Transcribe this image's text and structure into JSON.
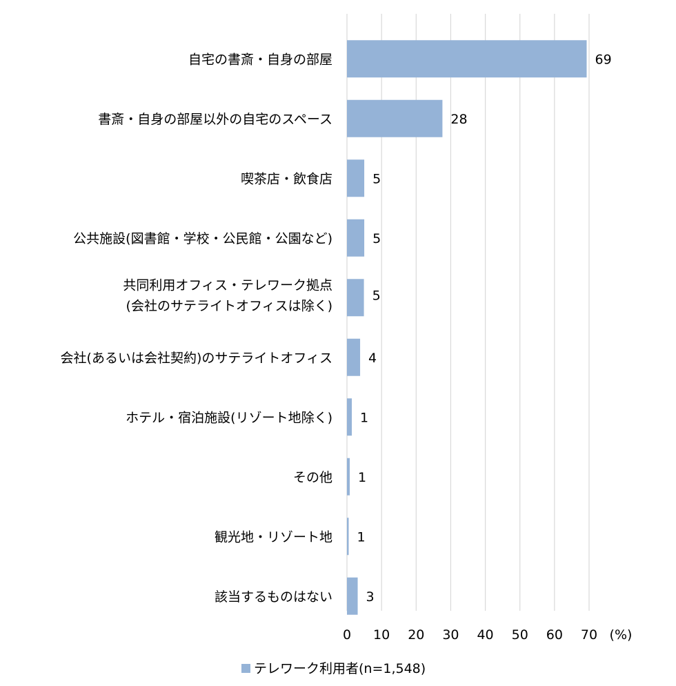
{
  "chart_data": {
    "type": "bar",
    "orientation": "horizontal",
    "categories": [
      [
        "自宅の書斎・自身の部屋"
      ],
      [
        "書斎・自身の部屋以外の自宅のスペース"
      ],
      [
        "喫茶店・飲食店"
      ],
      [
        "公共施設(図書館・学校・公民館・公園など)"
      ],
      [
        "共同利用オフィス・テレワーク拠点",
        "(会社のサテライトオフィスは除く)"
      ],
      [
        "会社(あるいは会社契約)のサテライトオフィス"
      ],
      [
        "ホテル・宿泊施設(リゾート地除く)"
      ],
      [
        "その他"
      ],
      [
        "観光地・リゾート地"
      ],
      [
        "該当するものはない"
      ]
    ],
    "series": [
      {
        "name": "テレワーク利用者(n=1,548)",
        "values": [
          69.3,
          27.6,
          5.0,
          5.0,
          4.9,
          3.8,
          1.4,
          0.8,
          0.5,
          3.1
        ],
        "labels": [
          "69",
          "28",
          "5",
          "5",
          "5",
          "4",
          "1",
          "1",
          "1",
          "3"
        ],
        "color": "#95b3d7"
      }
    ],
    "xlim": [
      0,
      70
    ],
    "xticks": [
      0,
      10,
      20,
      30,
      40,
      50,
      60,
      70
    ],
    "unit": "(%)",
    "grid": true,
    "gridColor": "#d9d9d9",
    "legend": "bottom"
  }
}
